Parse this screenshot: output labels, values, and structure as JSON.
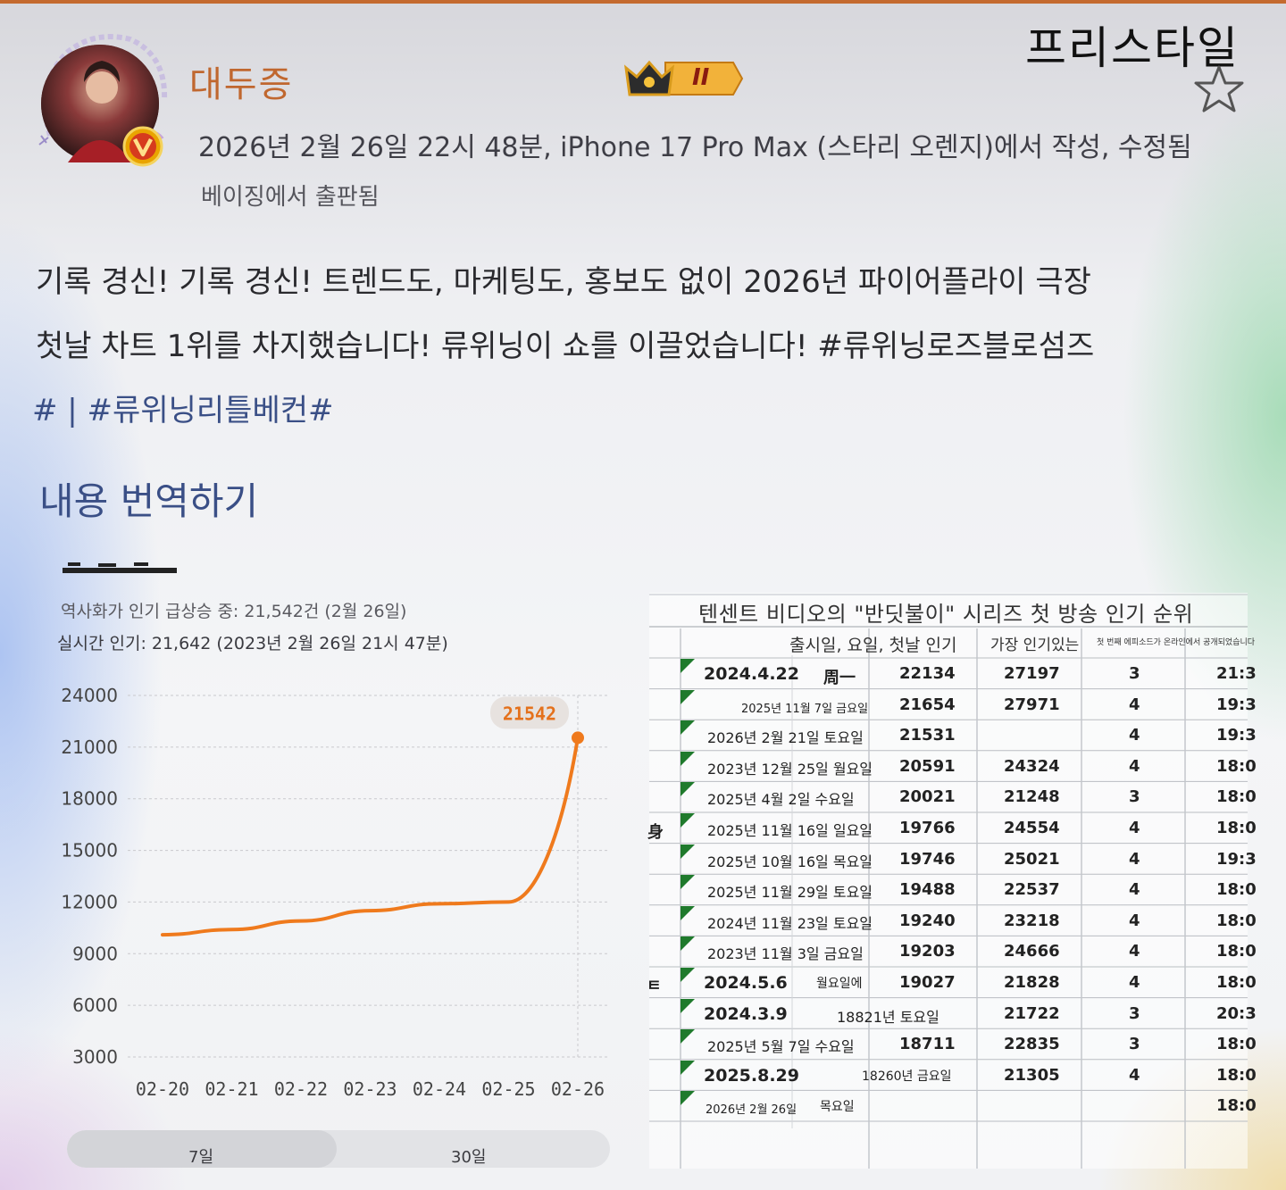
{
  "post": {
    "author": "대두증",
    "meta": "2026년 2월 26일 22시 48분, iPhone 17 Pro Max (스타리 오렌지)에서 작성, 수정됨",
    "source": "베이징에서 출판됨",
    "badge_label": "II",
    "freestyle_label": "프리스타일",
    "body_line1": "기록 경신! 기록 경신! 트렌드도, 마케팅도, 홍보도 없이 2026년 파이어플라이 극장",
    "body_line2_main": "첫날 차트 1위를 차지했습니다! 류위닝이 쇼를 이끌었습니다! ",
    "body_line2_hash": "#류위닝로즈블로섬즈",
    "tags": "# | #류위닝리틀베컨#",
    "translate_label": "내용 번역하기"
  },
  "chart_panel": {
    "stat1": "역사화가 인기 급상승 중: 21,542건 (2월 26일)",
    "stat2": "실시간 인기: 21,642 (2023년 2월 26일 21시 47분)",
    "tabs": [
      "7일",
      "30일"
    ],
    "active_tab": "7일"
  },
  "chart_data": {
    "type": "line",
    "x": [
      "02-20",
      "02-21",
      "02-22",
      "02-23",
      "02-24",
      "02-25",
      "02-26"
    ],
    "series": [
      {
        "values": [
          10100,
          10400,
          10900,
          11500,
          11900,
          12000,
          21542
        ]
      }
    ],
    "yticks": [
      24000,
      21000,
      18000,
      15000,
      12000,
      9000,
      6000,
      3000
    ],
    "ylim": [
      3000,
      24000
    ],
    "callout": "21542",
    "line_color": "#ef7a1d",
    "callout_color": "#e4711c",
    "grid": true
  },
  "table": {
    "title": "텐센트 비디오의 \"반딧불이\" 시리즈 첫 방송 인기 순위",
    "header_col1": "출시일, 요일, 첫날 인기",
    "header_col2": "가장 인기있는",
    "header_col3": "첫 번째 에피소드가 온라인에서 공개되었습니다",
    "rows": [
      {
        "date": "2024.4.22",
        "weekday": "周一",
        "first_day": "22134",
        "peak": "27197",
        "ep": "3",
        "time": "21:3"
      },
      {
        "date": "2025년 11월 7일 금요일",
        "weekday": "",
        "first_day": "21654",
        "peak": "27971",
        "ep": "4",
        "time": "19:3"
      },
      {
        "date": "2026년 2월 21일 토요일",
        "weekday": "",
        "first_day": "21531",
        "peak": "",
        "ep": "4",
        "time": "19:3"
      },
      {
        "date": "2023년 12월 25일 월요일",
        "weekday": "",
        "first_day": "20591",
        "peak": "24324",
        "ep": "4",
        "time": "18:0"
      },
      {
        "date": "2025년 4월 2일 수요일",
        "weekday": "",
        "first_day": "20021",
        "peak": "21248",
        "ep": "3",
        "time": "18:0"
      },
      {
        "date": "2025년 11월 16일 일요일",
        "weekday": "",
        "first_day": "19766",
        "peak": "24554",
        "ep": "4",
        "time": "18:0"
      },
      {
        "date": "2025년 10월 16일 목요일",
        "weekday": "",
        "first_day": "19746",
        "peak": "25021",
        "ep": "4",
        "time": "19:3"
      },
      {
        "date": "2025년 11월 29일 토요일",
        "weekday": "",
        "first_day": "19488",
        "peak": "22537",
        "ep": "4",
        "time": "18:0"
      },
      {
        "date": "2024년 11월 23일 토요일",
        "weekday": "",
        "first_day": "19240",
        "peak": "23218",
        "ep": "4",
        "time": "18:0"
      },
      {
        "date": "2023년 11월 3일 금요일",
        "weekday": "",
        "first_day": "19203",
        "peak": "24666",
        "ep": "4",
        "time": "18:0"
      },
      {
        "date": "2024.5.6",
        "weekday": "월요일에",
        "first_day": "19027",
        "peak": "21828",
        "ep": "4",
        "time": "18:0"
      },
      {
        "date": "2024.3.9",
        "weekday": "18821년 토요일",
        "first_day": "",
        "peak": "21722",
        "ep": "3",
        "time": "20:3"
      },
      {
        "date": "2025년 5월 7일 수요일",
        "weekday": "",
        "first_day": "18711",
        "peak": "22835",
        "ep": "3",
        "time": "18:0"
      },
      {
        "date": "2025.8.29",
        "weekday": "18260년 금요일",
        "first_day": "",
        "peak": "21305",
        "ep": "4",
        "time": "18:0"
      },
      {
        "date": "2026년 2월 26일",
        "weekday": "목요일",
        "first_day": "",
        "peak": "",
        "ep": "",
        "time": "18:0"
      }
    ],
    "side_marks": [
      "身",
      "ㅌ"
    ]
  }
}
